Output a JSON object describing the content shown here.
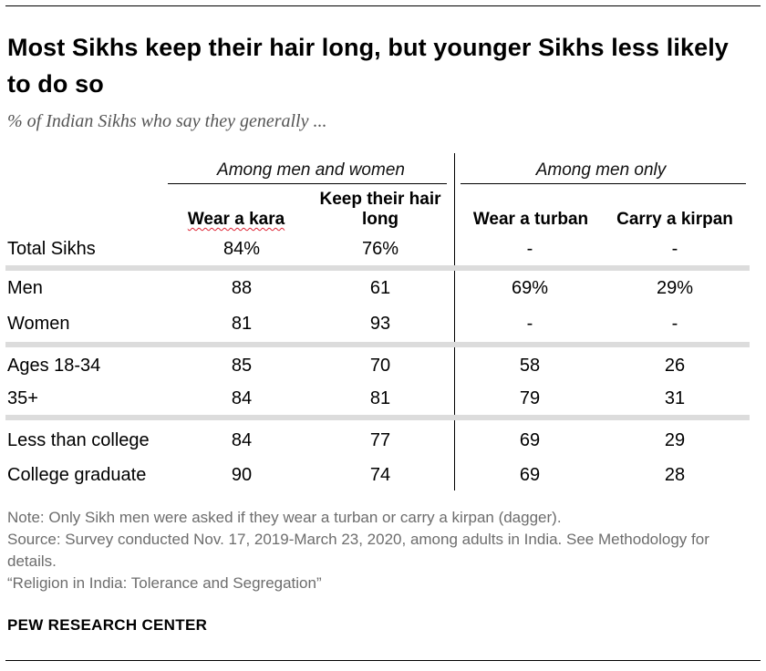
{
  "title": "Most Sikhs keep their hair long, but younger Sikhs less likely to do so",
  "subtitle": "% of Indian Sikhs who say they generally ...",
  "group_headers": [
    "Among men and women",
    "Among men only"
  ],
  "chart_data": {
    "type": "table",
    "columns": [
      "Wear a kara",
      "Keep their hair long",
      "Wear a turban",
      "Carry a kirpan"
    ],
    "rows": [
      {
        "label": "Total Sikhs",
        "values": [
          "84%",
          "76%",
          "-",
          "-"
        ]
      },
      {
        "label": "Men",
        "values": [
          "88",
          "61",
          "69%",
          "29%"
        ]
      },
      {
        "label": "Women",
        "values": [
          "81",
          "93",
          "-",
          "-"
        ]
      },
      {
        "label": "Ages 18-34",
        "values": [
          "85",
          "70",
          "58",
          "26"
        ]
      },
      {
        "label": "35+",
        "values": [
          "84",
          "81",
          "79",
          "31"
        ]
      },
      {
        "label": "Less than college",
        "values": [
          "84",
          "77",
          "69",
          "29"
        ]
      },
      {
        "label": "College graduate",
        "values": [
          "90",
          "74",
          "69",
          "28"
        ]
      }
    ]
  },
  "notes": [
    "Note: Only Sikh men were asked if they wear a turban or carry a kirpan (dagger).",
    "Source: Survey conducted Nov. 17, 2019-March 23, 2020, among adults in India. See Methodology for details.",
    "“Religion in India: Tolerance and Segregation”"
  ],
  "brand": "PEW RESEARCH CENTER",
  "colors": {
    "separator": "#dcdcdc",
    "note_text": "#6d6d6d",
    "text": "#000000"
  }
}
